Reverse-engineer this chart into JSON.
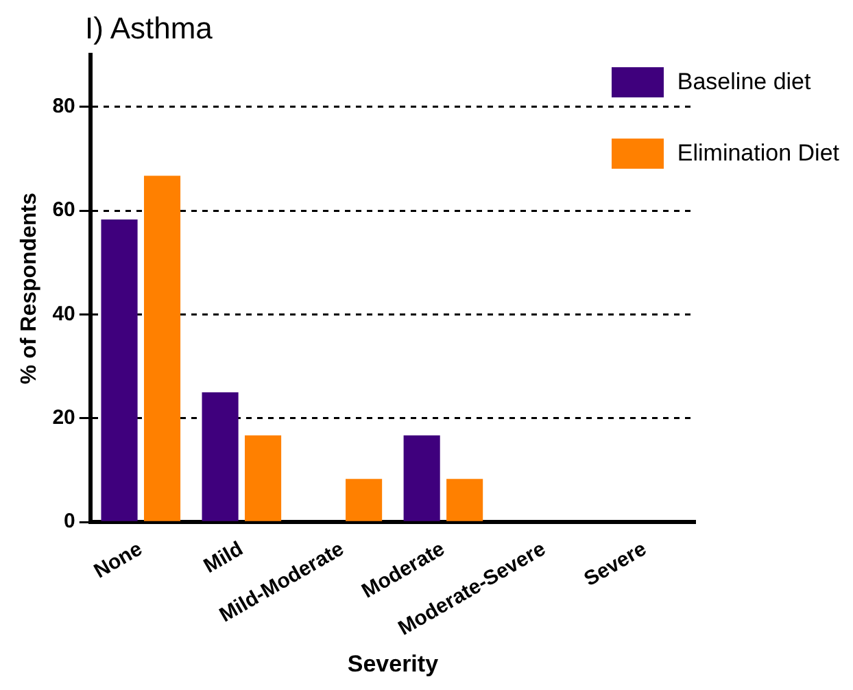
{
  "chart_data": {
    "type": "bar",
    "title": "I) Asthma",
    "xlabel": "Severity",
    "ylabel": "% of Respondents",
    "categories": [
      "None",
      "Mild",
      "Mild-Moderate",
      "Moderate",
      "Moderate-Severe",
      "Severe"
    ],
    "series": [
      {
        "name": "Baseline diet",
        "color": "#3f007d",
        "values": [
          58.3,
          25,
          0,
          16.7,
          0,
          0
        ]
      },
      {
        "name": "Elimination Diet",
        "color": "#ff8000",
        "values": [
          66.7,
          16.7,
          8.3,
          8.3,
          0,
          0
        ]
      }
    ],
    "ylim": [
      0,
      90
    ],
    "yticks": [
      0,
      20,
      40,
      60,
      80
    ],
    "grid": "y",
    "legend": "top right"
  }
}
